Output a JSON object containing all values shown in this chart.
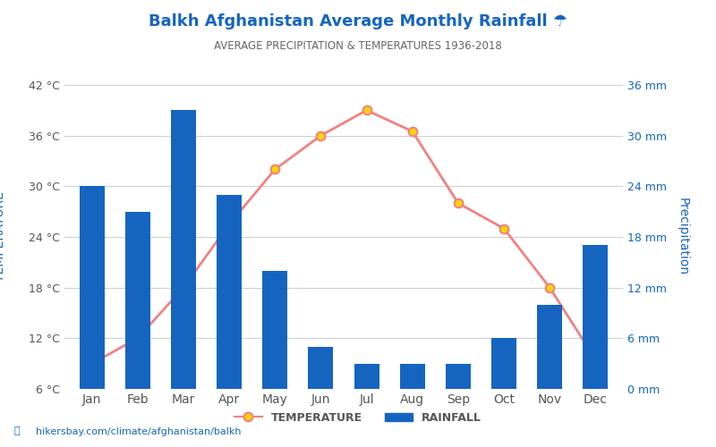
{
  "title": "Balkh Afghanistan Average Monthly Rainfall ☂",
  "subtitle": "AVERAGE PRECIPITATION & TEMPERATURES 1936-2018",
  "months": [
    "Jan",
    "Feb",
    "Mar",
    "Apr",
    "May",
    "Jun",
    "Jul",
    "Aug",
    "Sep",
    "Oct",
    "Nov",
    "Dec"
  ],
  "rainfall_mm": [
    24,
    21,
    33,
    23,
    14,
    5,
    3,
    3,
    3,
    6,
    10,
    17
  ],
  "temperature_c": [
    9,
    12,
    18,
    25.5,
    32,
    36,
    39,
    36.5,
    28,
    25,
    18,
    9.5
  ],
  "bar_color": "#1565C0",
  "line_color": "#F48080",
  "marker_color": "#FFD700",
  "marker_edge_color": "#F48080",
  "title_color": "#1565C0",
  "subtitle_color": "#666666",
  "axis_label_color": "#1565C0",
  "tick_color": "#555555",
  "grid_color": "#CCCCCC",
  "background_color": "#FFFFFF",
  "left_ylim": [
    6,
    42
  ],
  "left_yticks": [
    6,
    12,
    18,
    24,
    30,
    36,
    42
  ],
  "right_ylim": [
    0,
    36
  ],
  "right_yticks": [
    0,
    6,
    12,
    18,
    24,
    30,
    36
  ],
  "ylabel_left": "TEMPERATURE",
  "ylabel_right": "Precipitation",
  "watermark": "hikersbay.com/climate/afghanistan/balkh",
  "legend_temp_label": "TEMPERATURE",
  "legend_rain_label": "RAINFALL"
}
